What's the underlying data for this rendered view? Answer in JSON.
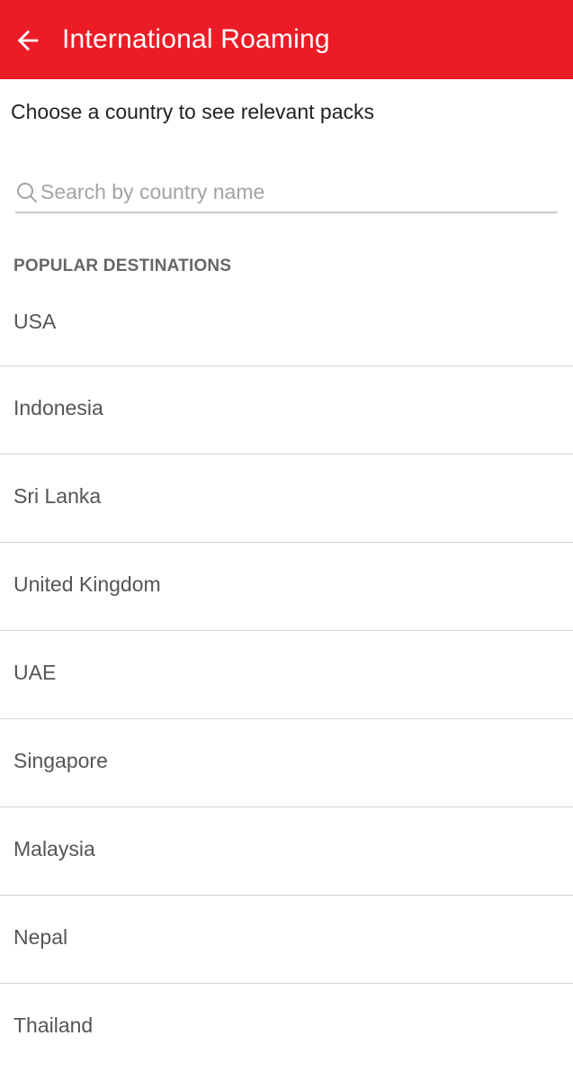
{
  "colors": {
    "app_bar": "#ec1c27",
    "app_bar_text": "#ffffff"
  },
  "app_bar": {
    "back_icon": "arrow-left-icon",
    "title": "International Roaming"
  },
  "subtitle": "Choose a country to see relevant packs",
  "search": {
    "icon": "search-icon",
    "placeholder": "Search by country name",
    "value": ""
  },
  "popular": {
    "header": "POPULAR DESTINATIONS",
    "countries": [
      "USA",
      "Indonesia",
      "Sri Lanka",
      "United Kingdom",
      "UAE",
      "Singapore",
      "Malaysia",
      "Nepal",
      "Thailand"
    ]
  }
}
